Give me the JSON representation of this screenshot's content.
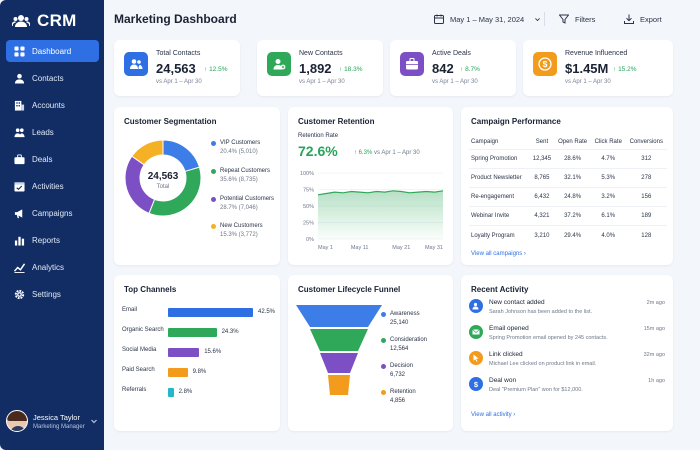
{
  "app": {
    "name": "CRM"
  },
  "sidebar": {
    "items": [
      {
        "label": "Dashboard",
        "icon": "grid-icon"
      },
      {
        "label": "Contacts",
        "icon": "person-icon"
      },
      {
        "label": "Accounts",
        "icon": "building-icon"
      },
      {
        "label": "Leads",
        "icon": "people-icon"
      },
      {
        "label": "Deals",
        "icon": "briefcase-icon"
      },
      {
        "label": "Activities",
        "icon": "calendar-icon"
      },
      {
        "label": "Campaigns",
        "icon": "megaphone-icon"
      },
      {
        "label": "Reports",
        "icon": "bar-chart-icon"
      },
      {
        "label": "Analytics",
        "icon": "line-chart-icon"
      },
      {
        "label": "Settings",
        "icon": "gear-icon"
      }
    ],
    "active_index": 0,
    "user": {
      "name": "Jessica Taylor",
      "role": "Marketing Manager"
    }
  },
  "header": {
    "title": "Marketing Dashboard",
    "date_range": "May 1 – May 31, 2024",
    "filters_label": "Filters",
    "export_label": "Export"
  },
  "kpis": [
    {
      "label": "Total Contacts",
      "value": "24,563",
      "change": "12.5%",
      "sub": "vs Apr 1 – Apr 30",
      "color": "#2f6fe4",
      "icon": "people-icon"
    },
    {
      "label": "New Contacts",
      "value": "1,892",
      "change": "18.3%",
      "sub": "vs Apr 1 – Apr 30",
      "color": "#2fa85a",
      "icon": "person-add-icon"
    },
    {
      "label": "Active Deals",
      "value": "842",
      "change": "8.7%",
      "sub": "vs Apr 1 – Apr 30",
      "color": "#7c4fc4",
      "icon": "briefcase-icon"
    },
    {
      "label": "Revenue Influenced",
      "value": "$1.45M",
      "change": "15.2%",
      "sub": "vs Apr 1 – Apr 30",
      "color": "#f29b1d",
      "icon": "dollar-icon"
    }
  ],
  "segmentation": {
    "title": "Customer Segmentation",
    "total_value": "24,563",
    "total_label": "Total",
    "segments": [
      {
        "name": "VIP Customers",
        "value": "20.4% (5,010)",
        "pct": 20.4,
        "color": "#3d7de8"
      },
      {
        "name": "Repeat Customers",
        "value": "35.6% (8,735)",
        "pct": 35.6,
        "color": "#2fa85a"
      },
      {
        "name": "Potential Customers",
        "value": "28.7% (7,046)",
        "pct": 28.7,
        "color": "#7c4fc4"
      },
      {
        "name": "New Customers",
        "value": "15.3% (3,772)",
        "pct": 15.3,
        "color": "#f5b125"
      }
    ]
  },
  "retention": {
    "title": "Customer Retention",
    "metric_label": "Retention Rate",
    "value": "72.6%",
    "change": "6.3%",
    "sub": "vs Apr 1 – Apr 30",
    "y_ticks": [
      "100%",
      "75%",
      "50%",
      "25%",
      "0%"
    ],
    "x_ticks": [
      "May 1",
      "May 11",
      "May 21",
      "May 31"
    ]
  },
  "chart_data": {
    "type": "area",
    "title": "Customer Retention",
    "ylabel": "",
    "xlabel": "",
    "ylim": [
      0,
      100
    ],
    "x": [
      "May 1",
      "May 3",
      "May 5",
      "May 7",
      "May 9",
      "May 11",
      "May 13",
      "May 15",
      "May 17",
      "May 19",
      "May 21",
      "May 23",
      "May 25",
      "May 27",
      "May 29",
      "May 31"
    ],
    "values": [
      67,
      69,
      71,
      70,
      72,
      71,
      70,
      72,
      71,
      73,
      72,
      70,
      71,
      72,
      71,
      73
    ],
    "grid": true
  },
  "campaigns": {
    "title": "Campaign Performance",
    "columns": [
      "Campaign",
      "Sent",
      "Open Rate",
      "Click Rate",
      "Conversions"
    ],
    "rows": [
      [
        "Spring Promotion",
        "12,345",
        "28.6%",
        "4.7%",
        "312"
      ],
      [
        "Product Newsletter",
        "8,765",
        "32.1%",
        "5.3%",
        "278"
      ],
      [
        "Re-engagement",
        "6,432",
        "24.8%",
        "3.2%",
        "156"
      ],
      [
        "Webinar Invite",
        "4,321",
        "37.2%",
        "6.1%",
        "189"
      ],
      [
        "Loyalty Program",
        "3,210",
        "29.4%",
        "4.0%",
        "128"
      ]
    ],
    "link": "View all campaigns"
  },
  "channels": {
    "title": "Top Channels",
    "items": [
      {
        "name": "Email",
        "value": "42.5%",
        "pct": 42.5,
        "color": "#2f6fe4"
      },
      {
        "name": "Organic Search",
        "value": "24.3%",
        "pct": 24.3,
        "color": "#2fa85a"
      },
      {
        "name": "Social Media",
        "value": "15.6%",
        "pct": 15.6,
        "color": "#7c4fc4"
      },
      {
        "name": "Paid Search",
        "value": "9.8%",
        "pct": 9.8,
        "color": "#f29b1d"
      },
      {
        "name": "Referrals",
        "value": "2.8%",
        "pct": 2.8,
        "color": "#22b8c9"
      }
    ]
  },
  "funnel": {
    "title": "Customer Lifecycle Funnel",
    "stages": [
      {
        "name": "Awareness",
        "value": "25,140",
        "color": "#3d7de8"
      },
      {
        "name": "Consideration",
        "value": "12,564",
        "color": "#2fa85a"
      },
      {
        "name": "Decision",
        "value": "6,732",
        "color": "#7c4fc4"
      },
      {
        "name": "Retention",
        "value": "4,856",
        "color": "#f29b1d"
      }
    ]
  },
  "activity": {
    "title": "Recent Activity",
    "items": [
      {
        "title": "New contact added",
        "desc": "Sarah Johnson has been added to the list.",
        "time": "2m ago",
        "color": "#2f6fe4",
        "icon": "person-add-icon"
      },
      {
        "title": "Email opened",
        "desc": "Spring Promotion email opened by 245 contacts.",
        "time": "15m ago",
        "color": "#2fa85a",
        "icon": "mail-icon"
      },
      {
        "title": "Link clicked",
        "desc": "Michael Lee clicked on product link in email.",
        "time": "32m ago",
        "color": "#f29b1d",
        "icon": "cursor-icon"
      },
      {
        "title": "Deal won",
        "desc": "Deal \"Premium Plan\" won for $12,000.",
        "time": "1h ago",
        "color": "#2f6fe4",
        "icon": "dollar-icon"
      }
    ],
    "link": "View all activity"
  }
}
